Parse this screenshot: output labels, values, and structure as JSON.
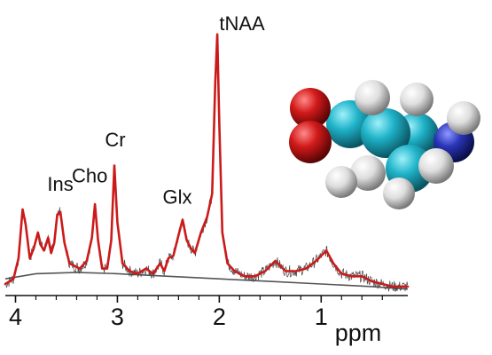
{
  "chart_data": {
    "type": "line",
    "x_unit": "ppm",
    "x_reversed": true,
    "xlim": [
      4.1,
      0.15
    ],
    "ylim": [
      0,
      1.0
    ],
    "x_ticks": [
      {
        "value": 4,
        "label": "4"
      },
      {
        "value": 3,
        "label": "3"
      },
      {
        "value": 2,
        "label": "2"
      },
      {
        "value": 1,
        "label": "1"
      }
    ],
    "grid": false,
    "baseline_value": 0.03,
    "peaks": [
      {
        "name": "Ins",
        "ppm": 3.56,
        "height": 0.3
      },
      {
        "name": "Cho",
        "ppm": 3.22,
        "height": 0.34
      },
      {
        "name": "Cr",
        "ppm": 3.03,
        "height": 0.48
      },
      {
        "name": "Glx",
        "ppm": 2.36,
        "height": 0.27
      },
      {
        "name": "tNAA",
        "ppm": 2.02,
        "height": 1.0
      }
    ],
    "series": [
      {
        "kind": "fit",
        "color": "#cc1a1a",
        "points": [
          [
            4.1,
            0.0
          ],
          [
            4.02,
            0.02
          ],
          [
            3.97,
            0.1
          ],
          [
            3.93,
            0.29
          ],
          [
            3.9,
            0.23
          ],
          [
            3.86,
            0.1
          ],
          [
            3.82,
            0.14
          ],
          [
            3.78,
            0.2
          ],
          [
            3.75,
            0.15
          ],
          [
            3.72,
            0.13
          ],
          [
            3.68,
            0.18
          ],
          [
            3.65,
            0.12
          ],
          [
            3.62,
            0.16
          ],
          [
            3.59,
            0.27
          ],
          [
            3.56,
            0.28
          ],
          [
            3.52,
            0.16
          ],
          [
            3.47,
            0.08
          ],
          [
            3.42,
            0.07
          ],
          [
            3.37,
            0.06
          ],
          [
            3.3,
            0.09
          ],
          [
            3.25,
            0.18
          ],
          [
            3.22,
            0.31
          ],
          [
            3.19,
            0.17
          ],
          [
            3.15,
            0.06
          ],
          [
            3.1,
            0.06
          ],
          [
            3.06,
            0.17
          ],
          [
            3.03,
            0.46
          ],
          [
            3.0,
            0.24
          ],
          [
            2.95,
            0.08
          ],
          [
            2.88,
            0.05
          ],
          [
            2.8,
            0.04
          ],
          [
            2.72,
            0.06
          ],
          [
            2.65,
            0.04
          ],
          [
            2.58,
            0.08
          ],
          [
            2.54,
            0.05
          ],
          [
            2.5,
            0.1
          ],
          [
            2.45,
            0.11
          ],
          [
            2.4,
            0.19
          ],
          [
            2.36,
            0.25
          ],
          [
            2.32,
            0.17
          ],
          [
            2.28,
            0.14
          ],
          [
            2.24,
            0.12
          ],
          [
            2.18,
            0.2
          ],
          [
            2.12,
            0.26
          ],
          [
            2.07,
            0.35
          ],
          [
            2.04,
            0.78
          ],
          [
            2.02,
            0.97
          ],
          [
            2.0,
            0.62
          ],
          [
            1.97,
            0.2
          ],
          [
            1.92,
            0.08
          ],
          [
            1.85,
            0.05
          ],
          [
            1.75,
            0.03
          ],
          [
            1.65,
            0.03
          ],
          [
            1.55,
            0.05
          ],
          [
            1.45,
            0.09
          ],
          [
            1.35,
            0.05
          ],
          [
            1.25,
            0.05
          ],
          [
            1.15,
            0.06
          ],
          [
            1.05,
            0.09
          ],
          [
            0.95,
            0.13
          ],
          [
            0.88,
            0.08
          ],
          [
            0.8,
            0.04
          ],
          [
            0.7,
            0.03
          ],
          [
            0.6,
            0.03
          ],
          [
            0.5,
            0.01
          ],
          [
            0.4,
            0.0
          ],
          [
            0.3,
            -0.01
          ],
          [
            0.2,
            -0.01
          ],
          [
            0.15,
            -0.01
          ]
        ]
      },
      {
        "kind": "baseline",
        "color": "#555555",
        "points": [
          [
            4.1,
            0.02
          ],
          [
            3.8,
            0.04
          ],
          [
            3.4,
            0.045
          ],
          [
            3.0,
            0.04
          ],
          [
            2.5,
            0.03
          ],
          [
            2.0,
            0.02
          ],
          [
            1.5,
            0.01
          ],
          [
            1.0,
            0.0
          ],
          [
            0.5,
            -0.01
          ],
          [
            0.15,
            -0.02
          ]
        ]
      }
    ]
  },
  "molecule": {
    "atom_colors": {
      "oxygen": "#d21a1a",
      "carbon": "#1fb3c9",
      "hydrogen": "#dedede",
      "nitrogen": "#2a35b8"
    }
  }
}
